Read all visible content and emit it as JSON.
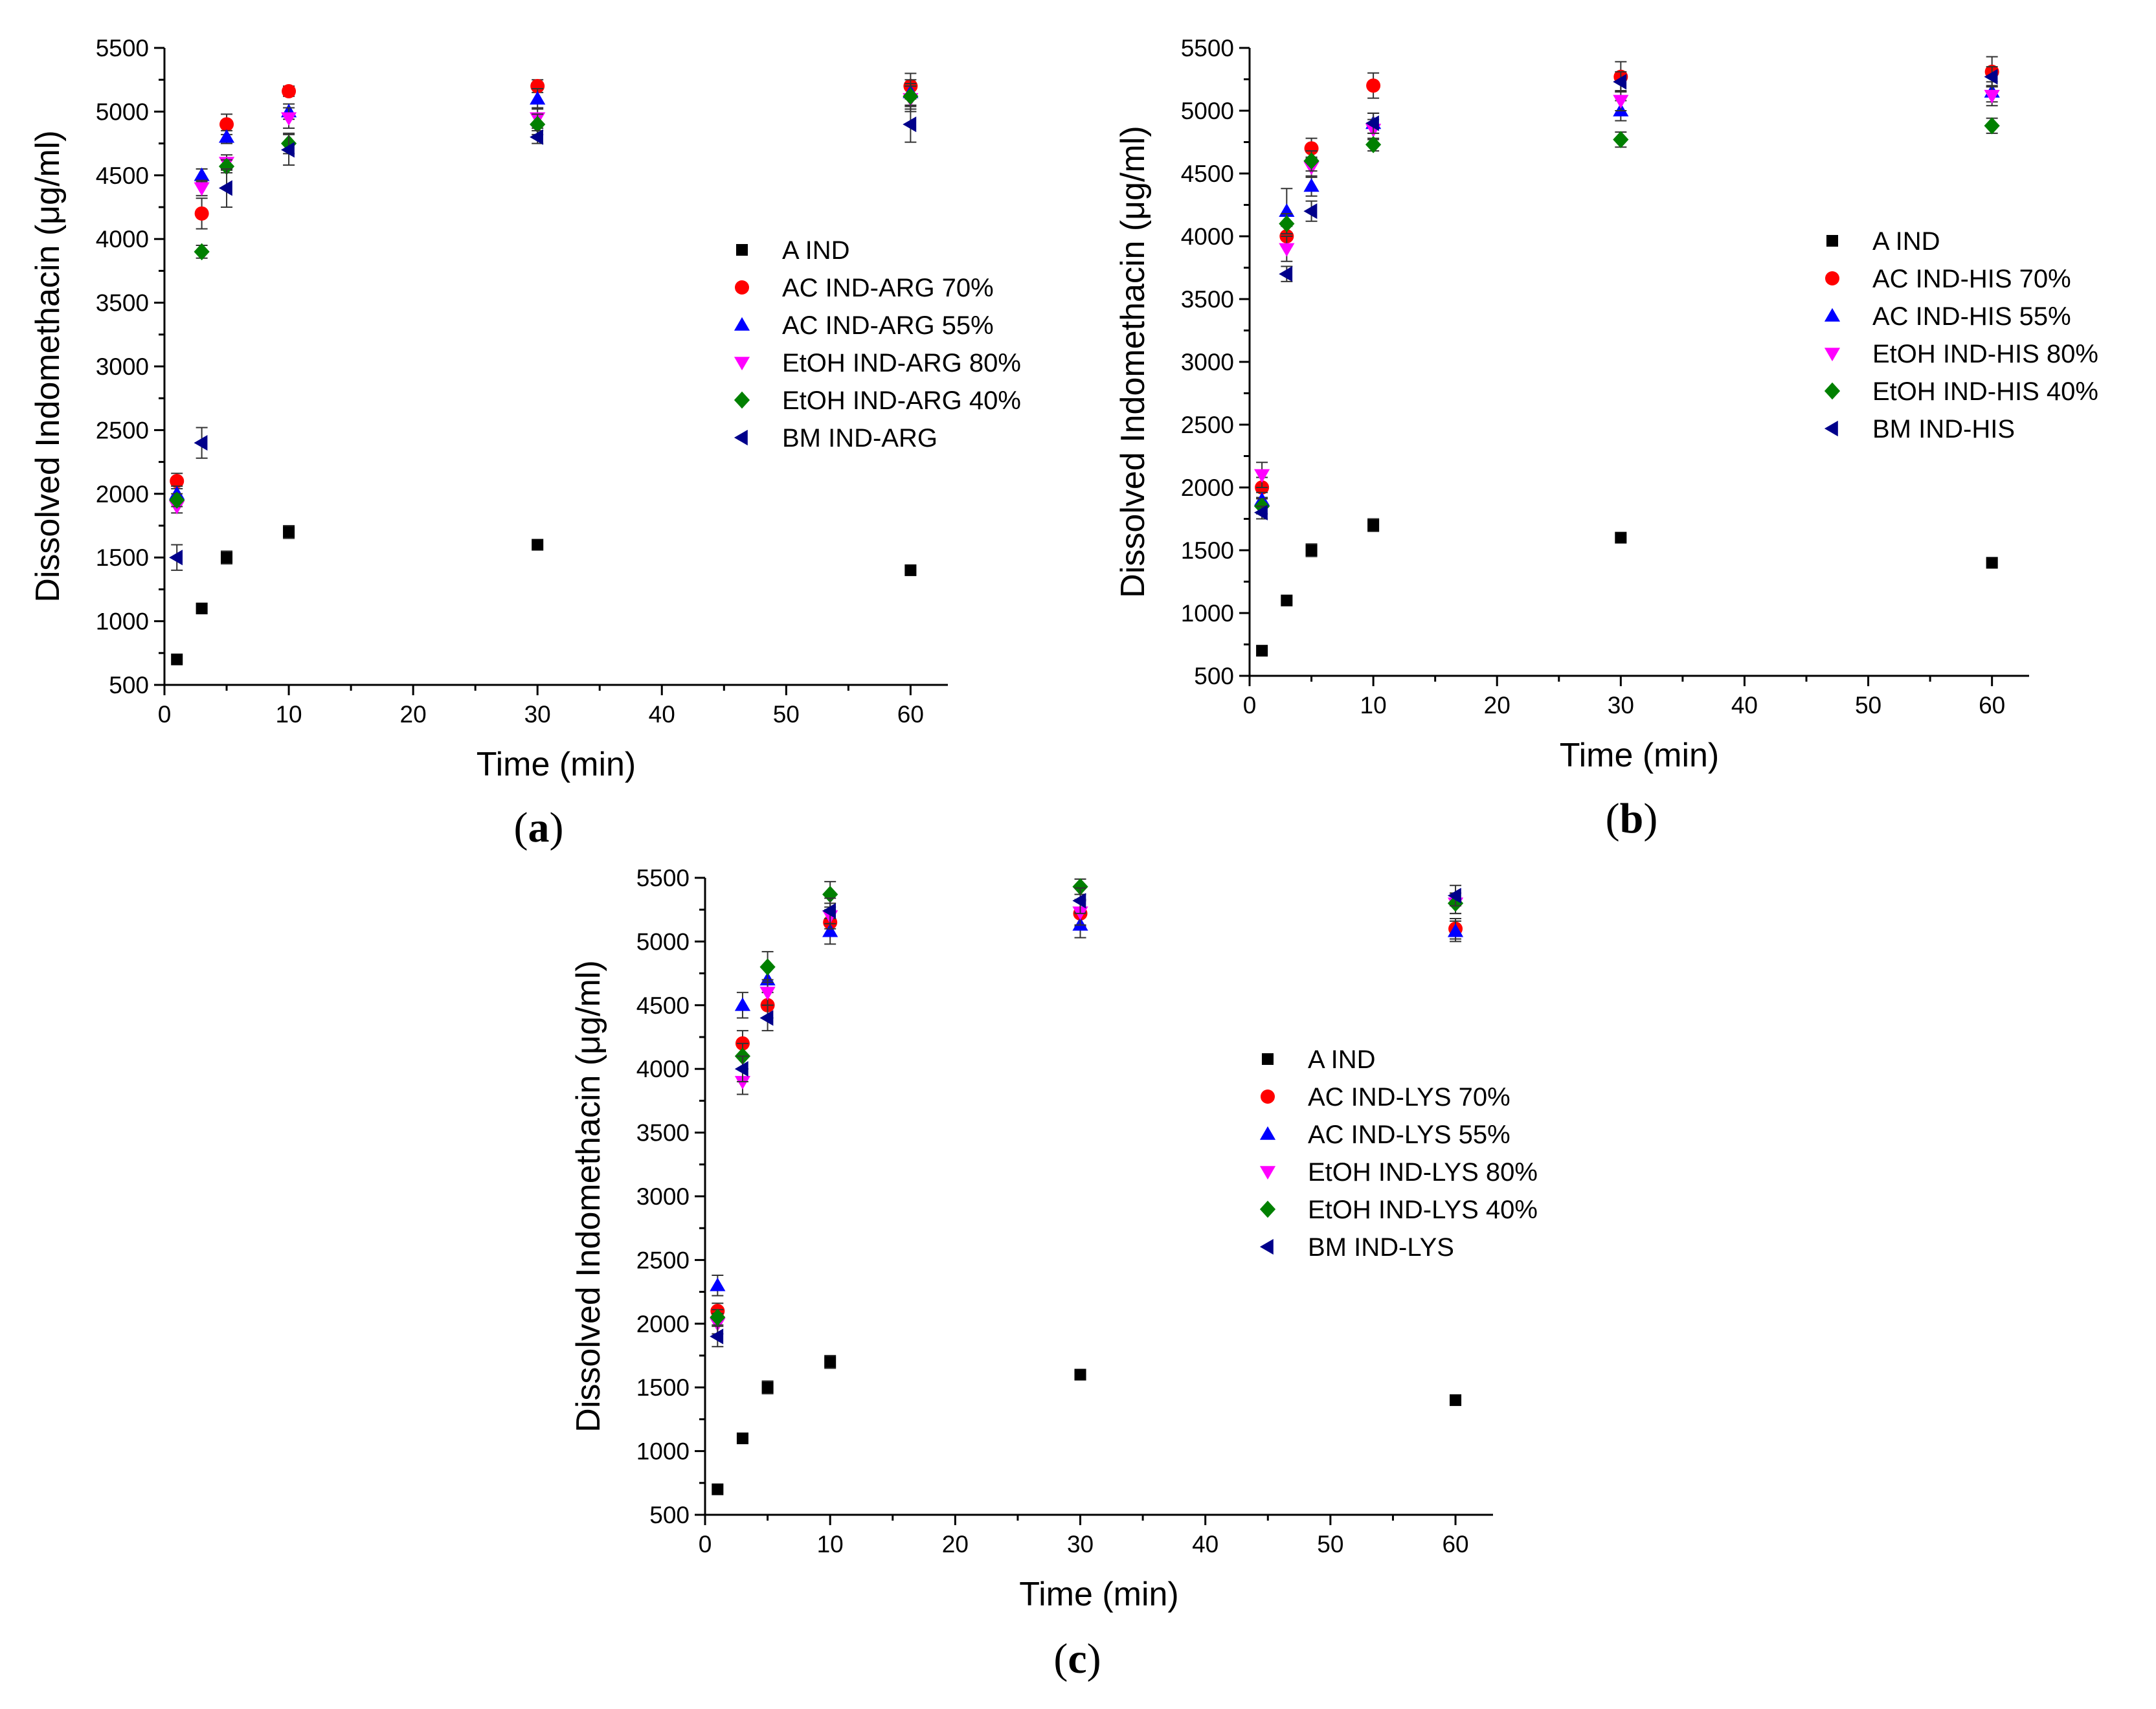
{
  "figure": {
    "panel_tags": [
      "(a)",
      "(b)",
      "(c)"
    ],
    "series_styles": [
      {
        "marker": "square",
        "color": "#000000"
      },
      {
        "marker": "circle",
        "color": "#ff0000"
      },
      {
        "marker": "triangle-up",
        "color": "#0000ff"
      },
      {
        "marker": "triangle-down",
        "color": "#ff00ff"
      },
      {
        "marker": "diamond",
        "color": "#008000"
      },
      {
        "marker": "triangle-left",
        "color": "#00008b"
      }
    ]
  },
  "chart_data": [
    {
      "type": "scatter",
      "panel": "(a)",
      "xlabel": "Time (min)",
      "ylabel": "Dissolved Indomethacin (μg/ml)",
      "xlim": [
        0,
        63
      ],
      "ylim": [
        500,
        5500
      ],
      "xticks": [
        0,
        10,
        20,
        30,
        40,
        50,
        60
      ],
      "yticks": [
        500,
        1000,
        1500,
        2000,
        2500,
        3000,
        3500,
        4000,
        4500,
        5000,
        5500
      ],
      "x": [
        1,
        3,
        5,
        10,
        30,
        60
      ],
      "legend_position": "center-right",
      "series": [
        {
          "name": "A IND",
          "values": [
            700,
            1100,
            1500,
            1700,
            1600,
            1400
          ],
          "errors": [
            0,
            0,
            50,
            50,
            0,
            0
          ]
        },
        {
          "name": "AC IND-ARG 70%",
          "values": [
            2100,
            4200,
            4900,
            5160,
            5200,
            5200
          ],
          "errors": [
            60,
            120,
            80,
            40,
            50,
            100
          ]
        },
        {
          "name": "AC IND-ARG 55%",
          "values": [
            2000,
            4500,
            4800,
            5000,
            5100,
            5150
          ],
          "errors": [
            60,
            50,
            50,
            60,
            80,
            100
          ]
        },
        {
          "name": "EtOH IND-ARG 80%",
          "values": [
            1900,
            4400,
            4600,
            4950,
            4950,
            5100
          ],
          "errors": [
            50,
            60,
            60,
            80,
            80,
            100
          ]
        },
        {
          "name": "EtOH IND-ARG 40%",
          "values": [
            1950,
            3900,
            4570,
            4750,
            4900,
            5120
          ],
          "errors": [
            50,
            50,
            50,
            80,
            80,
            100
          ]
        },
        {
          "name": "BM IND-ARG",
          "values": [
            1500,
            2400,
            4400,
            4700,
            4800,
            4900
          ],
          "errors": [
            100,
            120,
            150,
            120,
            50,
            140
          ]
        }
      ]
    },
    {
      "type": "scatter",
      "panel": "(b)",
      "xlabel": "Time (min)",
      "ylabel": "Dissolved Indomethacin (μg/ml)",
      "xlim": [
        0,
        63
      ],
      "ylim": [
        500,
        5500
      ],
      "xticks": [
        0,
        10,
        20,
        30,
        40,
        50,
        60
      ],
      "yticks": [
        500,
        1000,
        1500,
        2000,
        2500,
        3000,
        3500,
        4000,
        4500,
        5000,
        5500
      ],
      "x": [
        1,
        3,
        5,
        10,
        30,
        60
      ],
      "legend_position": "center-right",
      "series": [
        {
          "name": "A IND",
          "values": [
            700,
            1100,
            1500,
            1700,
            1600,
            1400
          ],
          "errors": [
            0,
            0,
            50,
            50,
            0,
            0
          ]
        },
        {
          "name": "AC IND-HIS 70%",
          "values": [
            2000,
            4000,
            4700,
            5200,
            5270,
            5310
          ],
          "errors": [
            80,
            80,
            80,
            100,
            120,
            120
          ]
        },
        {
          "name": "AC IND-HIS 55%",
          "values": [
            1900,
            4200,
            4400,
            4900,
            5000,
            5150
          ],
          "errors": [
            60,
            180,
            80,
            80,
            80,
            80
          ]
        },
        {
          "name": "EtOH IND-HIS 80%",
          "values": [
            2100,
            3900,
            4550,
            4850,
            5080,
            5120
          ],
          "errors": [
            100,
            100,
            80,
            80,
            80,
            80
          ]
        },
        {
          "name": "EtOH IND-HIS 40%",
          "values": [
            1850,
            4100,
            4600,
            4730,
            4770,
            4880
          ],
          "errors": [
            60,
            80,
            80,
            50,
            60,
            60
          ]
        },
        {
          "name": "BM IND-HIS",
          "values": [
            1800,
            3700,
            4200,
            4900,
            5230,
            5270
          ],
          "errors": [
            50,
            60,
            80,
            80,
            80,
            80
          ]
        }
      ]
    },
    {
      "type": "scatter",
      "panel": "(c)",
      "xlabel": "Time (min)",
      "ylabel": "Dissolved Indomethacin (μg/ml)",
      "xlim": [
        0,
        63
      ],
      "ylim": [
        500,
        5500
      ],
      "xticks": [
        0,
        10,
        20,
        30,
        40,
        50,
        60
      ],
      "yticks": [
        500,
        1000,
        1500,
        2000,
        2500,
        3000,
        3500,
        4000,
        4500,
        5000,
        5500
      ],
      "x": [
        1,
        3,
        5,
        10,
        30,
        60
      ],
      "legend_position": "center-right",
      "series": [
        {
          "name": "A IND",
          "values": [
            700,
            1100,
            1500,
            1700,
            1600,
            1400
          ],
          "errors": [
            0,
            0,
            50,
            50,
            0,
            0
          ]
        },
        {
          "name": "AC IND-LYS 70%",
          "values": [
            2100,
            4200,
            4500,
            5150,
            5220,
            5100
          ],
          "errors": [
            60,
            100,
            100,
            100,
            100,
            80
          ]
        },
        {
          "name": "AC IND-LYS 55%",
          "values": [
            2300,
            4500,
            4700,
            5080,
            5130,
            5080
          ],
          "errors": [
            80,
            100,
            100,
            100,
            100,
            80
          ]
        },
        {
          "name": "EtOH IND-LYS 80%",
          "values": [
            2000,
            3900,
            4600,
            5200,
            5230,
            5300
          ],
          "errors": [
            80,
            100,
            100,
            100,
            100,
            80
          ]
        },
        {
          "name": "EtOH IND-LYS 40%",
          "values": [
            2050,
            4100,
            4800,
            5370,
            5430,
            5300
          ],
          "errors": [
            60,
            100,
            120,
            100,
            60,
            80
          ]
        },
        {
          "name": "BM IND-LYS",
          "values": [
            1900,
            4000,
            4400,
            5240,
            5320,
            5360
          ],
          "errors": [
            80,
            100,
            100,
            100,
            100,
            80
          ]
        }
      ]
    }
  ]
}
